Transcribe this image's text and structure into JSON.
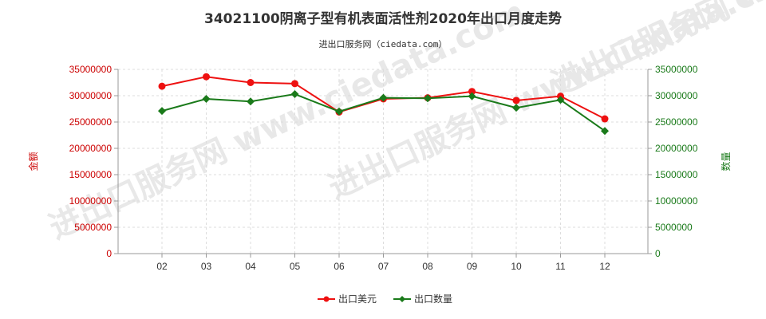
{
  "chart_data": {
    "type": "line",
    "title": "34021100阴离子型有机表面活性剂2020年出口月度走势",
    "subtitle": "进出口服务网（ciedata.com）",
    "watermark": "进出口服务网 www.ciedata.com",
    "categories": [
      "02",
      "03",
      "04",
      "05",
      "06",
      "07",
      "08",
      "09",
      "10",
      "11",
      "12"
    ],
    "y_left": {
      "label": "金额",
      "min": 0,
      "max": 35000000,
      "ticks": [
        0,
        5000000,
        10000000,
        15000000,
        20000000,
        25000000,
        30000000,
        35000000
      ],
      "color": "#cc0000"
    },
    "y_right": {
      "label": "数量",
      "min": 0,
      "max": 35000000,
      "ticks": [
        0,
        5000000,
        10000000,
        15000000,
        20000000,
        25000000,
        30000000,
        35000000
      ],
      "color": "#1a7a1a"
    },
    "grid": true,
    "legend_position": "bottom-center",
    "series": [
      {
        "name": "出口美元",
        "axis": "left",
        "color": "#ee1111",
        "marker": "circle",
        "values": [
          31800000,
          33600000,
          32500000,
          32300000,
          26900000,
          29400000,
          29600000,
          30800000,
          29100000,
          29900000,
          25600000
        ]
      },
      {
        "name": "出口数量",
        "axis": "right",
        "color": "#1a7a1a",
        "marker": "diamond",
        "values": [
          27100000,
          29400000,
          28900000,
          30300000,
          27000000,
          29600000,
          29500000,
          29900000,
          27700000,
          29200000,
          23300000
        ]
      }
    ]
  }
}
